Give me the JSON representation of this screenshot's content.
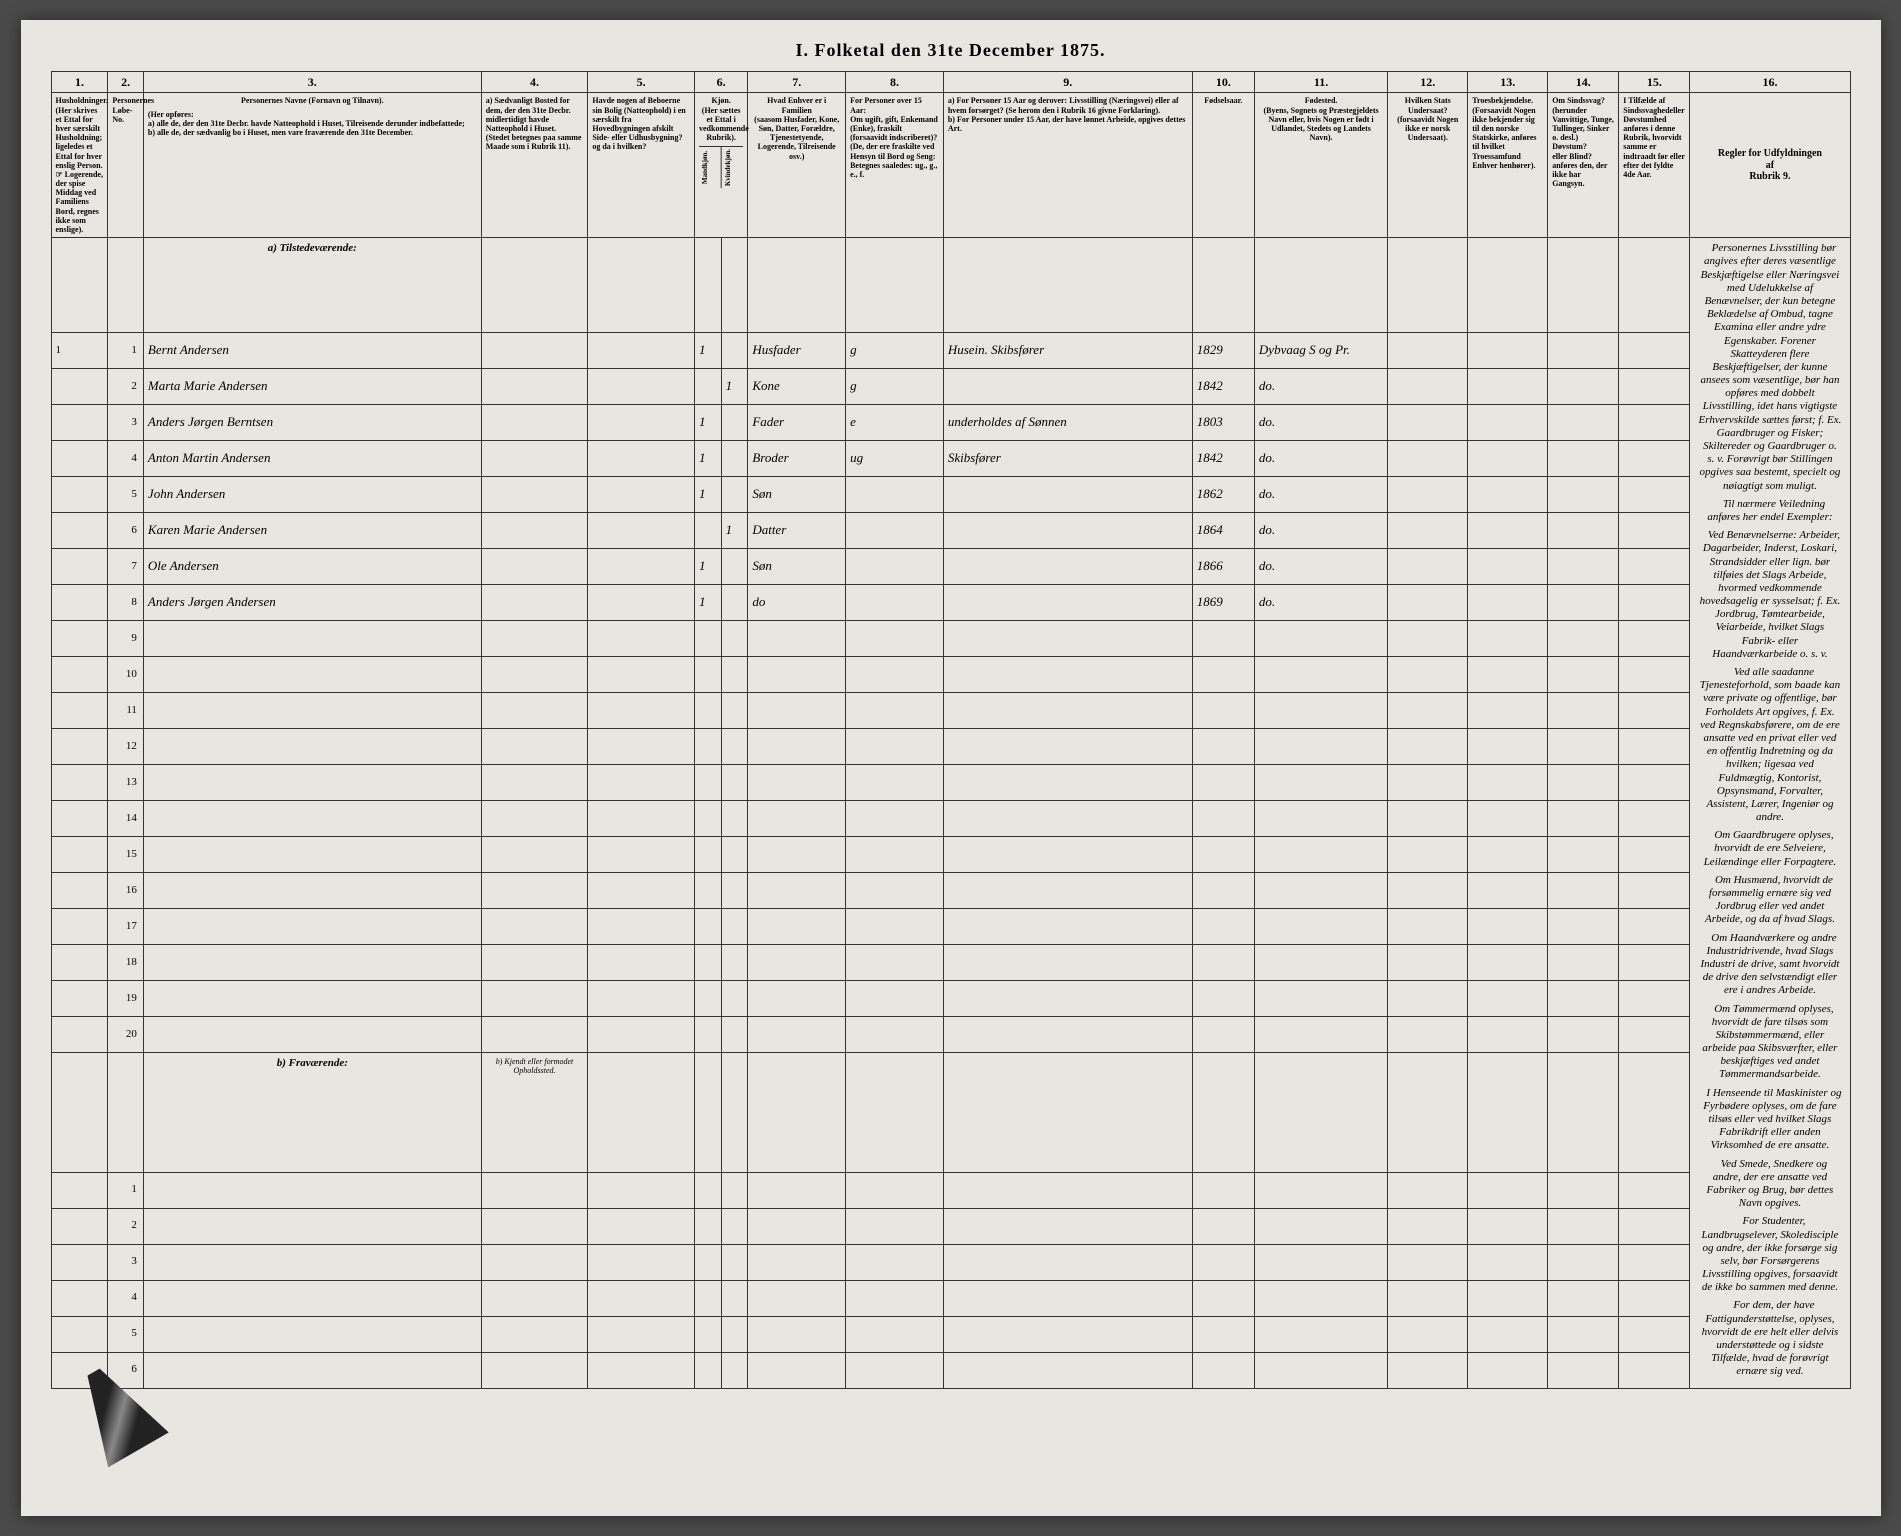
{
  "title": "I.  Folketal den 31te December 1875.",
  "columns": {
    "numbers": [
      "1.",
      "2.",
      "3.",
      "4.",
      "5.",
      "6.",
      "7.",
      "8.",
      "9.",
      "10.",
      "11.",
      "12.",
      "13.",
      "14.",
      "15.",
      "16."
    ],
    "widths_pct": [
      3.2,
      2.0,
      19,
      6,
      6,
      1.5,
      1.5,
      5.5,
      5.5,
      14,
      3.5,
      7.5,
      4.5,
      4.5,
      4,
      4,
      9
    ],
    "headers": {
      "c1": "Husholdninger.\n(Her skrives et Ettal for hver særskilt Husholdning; ligeledes et Ettal for hver enslig Person.\n☞ Logerende, der spise Middag ved Familiens Bord, regnes ikke som enslige).",
      "c2": "Personernes Løbe-No.",
      "c3_title": "Personernes Navne (Fornavn og Tilnavn).",
      "c3_body": "(Her opføres:\na) alle de, der den 31te Decbr. havde Natteophold i Huset, Tilreisende derunder indbefattede;\nb) alle de, der sædvanlig bo i Huset, men vare fraværende den 31te December.",
      "c4": "a) Sædvanligt Bosted for dem, der den 31te Decbr. midlertidigt havde Natteophold i Huset.\n(Stedet betegnes paa samme Maade som i Rubrik 11).",
      "c5": "Havde nogen af Beboerne sin Bolig (Natteophold) i en særskilt fra Hovedbygningen afskilt Side- eller Udhusbygning? og da i hvilken?",
      "c6": "Kjøn.\n(Her sættes et Ettal i vedkommende Rubrik).",
      "c6a": "Mandkjøn.",
      "c6b": "Kvindekjøn.",
      "c7": "Hvad Enhver er i Familien\n(saasom Husfader, Kone, Søn, Datter, Forældre, Tjenestetyende, Logerende, Tilreisende osv.)",
      "c8": "For Personer over 15 Aar:\nOm ugift, gift, Enkemand (Enke), fraskilt (forsaavidt indscriberet)?\n(De, der ere fraskilte ved Hensyn til Bord og Seng: Betegnes saaledes: ug., g., e., f.",
      "c9": "a) For Personer 15 Aar og derover: Livsstilling (Næringsvei) eller af hvem forsørget? (Se herom den i Rubrik 16 givne Forklaring).\nb) For Personer under 15 Aar, der have lønnet Arbeide, opgives dettes Art.",
      "c10": "Fødselsaar.",
      "c11": "Fødested.\n(Byens, Sognets og Præstegjeldets Navn eller, hvis Nogen er født i Udlandet, Stedets og Landets Navn).",
      "c12": "Hvilken Stats Undersaat?\n(forsaavidt Nogen ikke er norsk Undersaat).",
      "c13": "Troesbekjendelse.\n(Forsaavidt Nogen ikke bekjender sig til den norske Statskirke, anføres til hvilket Troessamfund Enhver henhører).",
      "c14": "Om Sindssvag?\n(herunder Vanvittige, Tunge, Tullinger, Sinker o. desl.)\nDøvstum?\neller Blind?\nanføres den, der ikke har Gangsyn.",
      "c15": "I Tilfælde af Sindssvaghedeller Døvstumhed anføres i denne Rubrik, hvorvidt samme er indtraadt før eller efter det fyldte 4de Aar.",
      "c16_title": "Regler for Udfyldningen\naf\nRubrik 9."
    }
  },
  "sections": {
    "a_label": "a) Tilstedeværende:",
    "b_label": "b) Fraværende:",
    "b_col4": "b) Kjendt eller formodet Opholdssted."
  },
  "rows_a": [
    {
      "hh": "1",
      "num": "1",
      "name": "Bernt Andersen",
      "c6a": "1",
      "c6b": "",
      "c7": "Husfader",
      "c8": "g",
      "c9": "Husein. Skibsfører",
      "c10": "1829",
      "c11": "Dybvaag S og Pr."
    },
    {
      "hh": "",
      "num": "2",
      "name": "Marta Marie Andersen",
      "c6a": "",
      "c6b": "1",
      "c7": "Kone",
      "c8": "g",
      "c9": "",
      "c10": "1842",
      "c11": "do."
    },
    {
      "hh": "",
      "num": "3",
      "name": "Anders Jørgen Berntsen",
      "c6a": "1",
      "c6b": "",
      "c7": "Fader",
      "c8": "e",
      "c9": "underholdes af Sønnen",
      "c10": "1803",
      "c11": "do."
    },
    {
      "hh": "",
      "num": "4",
      "name": "Anton Martin Andersen",
      "c6a": "1",
      "c6b": "",
      "c7": "Broder",
      "c8": "ug",
      "c9": "Skibsfører",
      "c10": "1842",
      "c11": "do."
    },
    {
      "hh": "",
      "num": "5",
      "name": "John Andersen",
      "c6a": "1",
      "c6b": "",
      "c7": "Søn",
      "c8": "",
      "c9": "",
      "c10": "1862",
      "c11": "do."
    },
    {
      "hh": "",
      "num": "6",
      "name": "Karen Marie Andersen",
      "c6a": "",
      "c6b": "1",
      "c7": "Datter",
      "c8": "",
      "c9": "",
      "c10": "1864",
      "c11": "do."
    },
    {
      "hh": "",
      "num": "7",
      "name": "Ole Andersen",
      "c6a": "1",
      "c6b": "",
      "c7": "Søn",
      "c8": "",
      "c9": "",
      "c10": "1866",
      "c11": "do."
    },
    {
      "hh": "",
      "num": "8",
      "name": "Anders Jørgen Andersen",
      "c6a": "1",
      "c6b": "",
      "c7": "do",
      "c8": "",
      "c9": "",
      "c10": "1869",
      "c11": "do."
    }
  ],
  "empty_a_rows": [
    9,
    10,
    11,
    12,
    13,
    14,
    15,
    16,
    17,
    18,
    19,
    20
  ],
  "empty_b_rows": [
    1,
    2,
    3,
    4,
    5,
    6
  ],
  "rules_text": [
    "Personernes Livsstilling bør angives efter deres væsentlige Beskjæftigelse eller Næringsvei med Udelukkelse af Benævnelser, der kun betegne Beklædelse af Ombud, tagne Examina eller andre ydre Egenskaber. Forener Skatteyderen flere Beskjæftigelser, der kunne ansees som væsentlige, bør han opføres med dobbelt Livsstilling, idet hans vigtigste Erhvervskilde sættes først; f. Ex. Gaardbruger og Fisker; Skiltereder og Gaardbruger o. s. v. Forøvrigt bør Stillingen opgives saa bestemt, specielt og nøiagtigt som muligt.",
    "Til nærmere Veiledning anføres her endel Exempler:",
    "Ved Benævnelserne: Arbeider, Dagarbeider, Inderst, Loskari, Strandsidder eller lign. bør tilføies det Slags Arbeide, hvormed vedkommende hovedsagelig er sysselsat; f. Ex. Jordbrug, Tømtearbeide, Veiarbeide, hvilket Slags Fabrik- eller Haandværkarbeide o. s. v.",
    "Ved alle saadanne Tjenesteforhold, som baade kan være private og offentlige, bør Forholdets Art opgives, f. Ex. ved Regnskabsførere, om de ere ansatte ved en privat eller ved en offentlig Indretning og da hvilken; ligesaa ved Fuldmægtig, Kontorist, Opsynsmand, Forvalter, Assistent, Lærer, Ingeniør og andre.",
    "Om Gaardbrugere oplyses, hvorvidt de ere Selveiere, Leilændinge eller Forpagtere.",
    "Om Husmænd, hvorvidt de forsømmelig ernære sig ved Jordbrug eller ved andet Arbeide, og da af hvad Slags.",
    "Om Haandværkere og andre Industridrivende, hvad Slags Industri de drive, samt hvorvidt de drive den selvstændigt eller ere i andres Arbeide.",
    "Om Tømmermænd oplyses, hvorvidt de fare tilsøs som Skibstømmermænd, eller arbeide paa Skibsværfter, eller beskjæftiges ved andet Tømmermandsarbeide.",
    "I Henseende til Maskinister og Fyrbødere oplyses, om de fare tilsøs eller ved hvilket Slags Fabrikdrift eller anden Virksomhed de ere ansatte.",
    "Ved Smede, Snedkere og andre, der ere ansatte ved Fabriker og Brug, bør dettes Navn opgives.",
    "For Studenter, Landbrugselever, Skoledisciple og andre, der ikke forsørge sig selv, bør Forsørgerens Livsstilling opgives, forsaavidt de ikke bo sammen med denne.",
    "For dem, der have Fattigunderstøttelse, oplyses, hvorvidt de ere helt eller delvis understøttede og i sidste Tilfælde, hvad de forøvrigt ernære sig ved."
  ],
  "colors": {
    "page_bg": "#e8e6e0",
    "border": "#333333",
    "text": "#1a1a1a",
    "handwriting": "#3a3328"
  }
}
